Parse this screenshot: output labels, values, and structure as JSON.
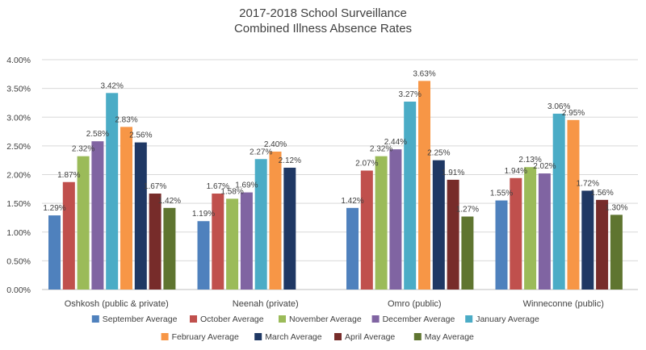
{
  "chart_data": {
    "type": "bar",
    "title": [
      "2017-2018 School Surveillance",
      "Combined Illness Absence Rates"
    ],
    "xlabel": "",
    "ylabel": "",
    "ylim": [
      0,
      4.0
    ],
    "yticks": [
      0,
      0.5,
      1.0,
      1.5,
      2.0,
      2.5,
      3.0,
      3.5,
      4.0
    ],
    "ytick_labels": [
      "0.00%",
      "0.50%",
      "1.00%",
      "1.50%",
      "2.00%",
      "2.50%",
      "3.00%",
      "3.50%",
      "4.00%"
    ],
    "grid": true,
    "legend_position": "bottom",
    "categories": [
      "Oshkosh (public & private)",
      "Neenah (private)",
      "Omro (public)",
      "Winneconne (public)"
    ],
    "series": [
      {
        "name": "September Average",
        "color": "#4f81bd",
        "values": [
          1.29,
          1.19,
          1.42,
          1.55
        ],
        "labels": [
          "1.29%",
          "1.19%",
          "1.42%",
          "1.55%"
        ]
      },
      {
        "name": "October Average",
        "color": "#c0504d",
        "values": [
          1.87,
          1.67,
          2.07,
          1.94
        ],
        "labels": [
          "1.87%",
          "1.67%",
          "2.07%",
          "1.94%"
        ]
      },
      {
        "name": "November Average",
        "color": "#9bbb59",
        "values": [
          2.32,
          1.58,
          2.32,
          2.13
        ],
        "labels": [
          "2.32%",
          "1.58%",
          "2.32%",
          "2.13%"
        ]
      },
      {
        "name": "December Average",
        "color": "#8064a2",
        "values": [
          2.58,
          1.69,
          2.44,
          2.02
        ],
        "labels": [
          "2.58%",
          "1.69%",
          "2.44%",
          "2.02%"
        ]
      },
      {
        "name": "January Average",
        "color": "#4bacc6",
        "values": [
          3.42,
          2.27,
          3.27,
          3.06
        ],
        "labels": [
          "3.42%",
          "2.27%",
          "3.27%",
          "3.06%"
        ]
      },
      {
        "name": "February Average",
        "color": "#f79646",
        "values": [
          2.83,
          2.4,
          3.63,
          2.95
        ],
        "labels": [
          "2.83%",
          "2.40%",
          "3.63%",
          "2.95%"
        ]
      },
      {
        "name": "March Average",
        "color": "#1f3864",
        "values": [
          2.56,
          2.12,
          2.25,
          1.72
        ],
        "labels": [
          "2.56%",
          "2.12%",
          "2.25%",
          "1.72%"
        ]
      },
      {
        "name": "April Average",
        "color": "#772c2a",
        "values": [
          1.67,
          null,
          1.91,
          1.56
        ],
        "labels": [
          "1.67%",
          "",
          "1.91%",
          "1.56%"
        ]
      },
      {
        "name": "May Average",
        "color": "#5f7530",
        "values": [
          1.42,
          null,
          1.27,
          1.3
        ],
        "labels": [
          "1.42%",
          "",
          "1.27%",
          "1.30%"
        ]
      }
    ]
  }
}
